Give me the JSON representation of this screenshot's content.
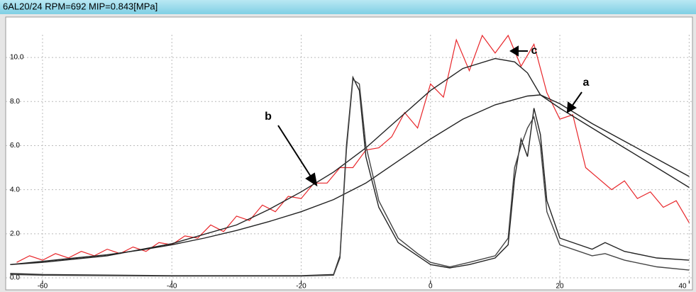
{
  "chart_data": {
    "type": "line",
    "title": "6AL20/24  RPM=692    MIP=0.843[MPa]",
    "xlim": [
      -65.7,
      40.4
    ],
    "ylim": [
      0,
      11
    ],
    "xticks": [
      -60,
      -40,
      -20,
      0,
      20,
      40
    ],
    "yticks": [
      {
        "value": 0,
        "label": "0.0"
      },
      {
        "value": 2,
        "label": "2.0"
      },
      {
        "value": 4,
        "label": "4.0"
      },
      {
        "value": 6,
        "label": "6.0"
      },
      {
        "value": 8,
        "label": "8.0"
      },
      {
        "value": 10,
        "label": "10.0"
      }
    ],
    "grid": true,
    "annotations": [
      "a",
      "b",
      "c"
    ],
    "series": [
      {
        "color": "#e8262a",
        "x": [
          -64,
          -62,
          -60,
          -58,
          -56,
          -54,
          -52,
          -50,
          -48,
          -46,
          -44,
          -42,
          -40,
          -38,
          -36,
          -34,
          -32,
          -30,
          -28,
          -26,
          -24,
          -22,
          -20,
          -18,
          -16,
          -14,
          -12,
          -10,
          -8,
          -6,
          -4,
          -2,
          0,
          2,
          4,
          6,
          8,
          10,
          12,
          14,
          16,
          18,
          20,
          22,
          24,
          26,
          28,
          30,
          32,
          34,
          36,
          38,
          40
        ],
        "values": [
          0.7,
          1.0,
          0.8,
          1.1,
          0.9,
          1.2,
          1.0,
          1.3,
          1.1,
          1.4,
          1.2,
          1.6,
          1.5,
          1.9,
          1.8,
          2.4,
          2.1,
          2.8,
          2.6,
          3.3,
          3.0,
          3.7,
          3.6,
          4.3,
          4.3,
          5.0,
          5.0,
          5.8,
          5.9,
          6.4,
          7.5,
          6.8,
          8.8,
          8.2,
          10.8,
          9.4,
          11.0,
          10.2,
          11.0,
          9.6,
          10.6,
          8.4,
          7.2,
          7.4,
          5.0,
          4.5,
          4.0,
          4.4,
          3.6,
          3.9,
          3.2,
          3.5,
          2.5
        ]
      },
      {
        "color": "#222222",
        "x": [
          -65,
          -60,
          -50,
          -40,
          -30,
          -25,
          -20,
          -15,
          -10,
          -5,
          0,
          5,
          10,
          13,
          15,
          17,
          20,
          25,
          30,
          35,
          40
        ],
        "values": [
          0.6,
          0.7,
          1.0,
          1.55,
          2.4,
          3.1,
          3.9,
          4.8,
          5.9,
          7.2,
          8.5,
          9.5,
          9.95,
          9.8,
          9.3,
          8.3,
          7.9,
          7.0,
          6.2,
          5.4,
          4.6
        ]
      },
      {
        "color": "#222222",
        "x": [
          -65,
          -60,
          -55,
          -50,
          -45,
          -40,
          -35,
          -30,
          -25,
          -20,
          -15,
          -10,
          -5,
          0,
          5,
          10,
          15,
          17,
          20,
          25,
          30,
          35,
          40
        ],
        "values": [
          0.6,
          0.75,
          0.9,
          1.05,
          1.25,
          1.5,
          1.8,
          2.15,
          2.55,
          3.0,
          3.55,
          4.3,
          5.3,
          6.3,
          7.2,
          7.85,
          8.25,
          8.3,
          7.7,
          6.8,
          5.9,
          5.0,
          4.1
        ]
      },
      {
        "color": "#222222",
        "x": [
          -65,
          -60,
          -40,
          -20,
          -15,
          -14,
          -13,
          -12,
          -11,
          -10,
          -8,
          -5,
          -2,
          0,
          3,
          6,
          10,
          12,
          13,
          14,
          15,
          16,
          17,
          18,
          20,
          25,
          27,
          30,
          35,
          40
        ],
        "values": [
          0.2,
          0.15,
          0.1,
          0.1,
          0.15,
          1.0,
          6.0,
          9.1,
          8.5,
          5.5,
          3.2,
          1.6,
          1.0,
          0.6,
          0.45,
          0.6,
          0.9,
          1.5,
          4.5,
          6.3,
          5.5,
          7.7,
          6.5,
          3.5,
          1.8,
          1.3,
          1.6,
          1.2,
          0.9,
          0.8
        ]
      },
      {
        "color": "#444444",
        "x": [
          -65,
          -60,
          -40,
          -20,
          -15,
          -14,
          -13,
          -12,
          -11,
          -10,
          -8,
          -5,
          -2,
          0,
          3,
          6,
          10,
          12,
          13,
          14,
          15,
          16,
          17,
          18,
          20,
          25,
          27,
          30,
          35,
          40
        ],
        "values": [
          0.15,
          0.12,
          0.08,
          0.08,
          0.12,
          0.9,
          5.8,
          9.0,
          8.8,
          6.0,
          3.5,
          1.8,
          1.1,
          0.7,
          0.5,
          0.7,
          1.0,
          1.8,
          5.0,
          6.0,
          6.8,
          7.3,
          6.0,
          3.0,
          1.5,
          1.0,
          1.1,
          0.8,
          0.5,
          0.35
        ]
      }
    ]
  }
}
